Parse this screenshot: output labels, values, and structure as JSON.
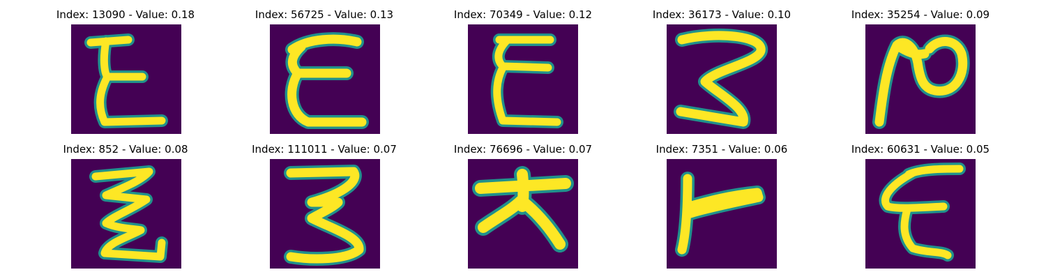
{
  "colors": {
    "background": "#440154",
    "mid": "#21918c",
    "stroke": "#fde725"
  },
  "panels": [
    {
      "title": "Index: 13090 - Value: 0.18",
      "glyph": "E-shape"
    },
    {
      "title": "Index: 56725 - Value: 0.13",
      "glyph": "E-shape"
    },
    {
      "title": "Index: 70349 - Value: 0.12",
      "glyph": "E-shape"
    },
    {
      "title": "Index: 36173 - Value: 0.10",
      "glyph": "3-shape"
    },
    {
      "title": "Index: 35254 - Value: 0.09",
      "glyph": "N-shape"
    },
    {
      "title": "Index: 852 - Value: 0.08",
      "glyph": "Z-shape"
    },
    {
      "title": "Index: 111011 - Value: 0.07",
      "glyph": "3-shape"
    },
    {
      "title": "Index: 76696 - Value: 0.07",
      "glyph": "T-shape"
    },
    {
      "title": "Index: 7351 - Value: 0.06",
      "glyph": "L-shape"
    },
    {
      "title": "Index: 60631 - Value: 0.05",
      "glyph": "E-shape"
    }
  ]
}
